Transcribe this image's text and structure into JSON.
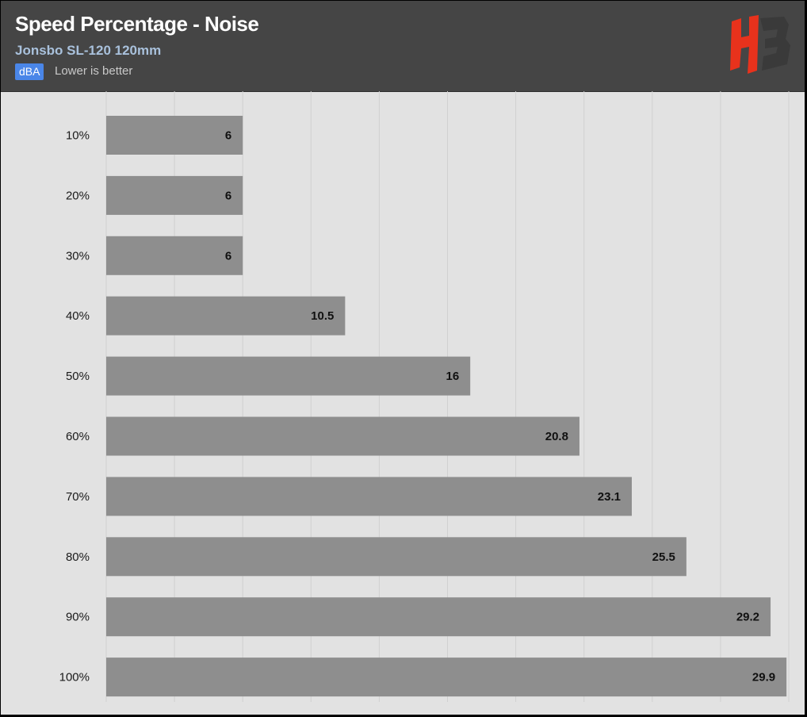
{
  "header": {
    "title": "Speed Percentage - Noise",
    "subtitle": "Jonsbo SL-120 120mm",
    "unit_badge": "dBA",
    "note": "Lower is better",
    "logo_icon": "hb-logo-icon"
  },
  "colors": {
    "header_bg": "#454545",
    "plot_bg": "#e2e2e2",
    "bar": "#8e8e8e",
    "gridline": "#d0d0d0",
    "badge": "#4a86e8",
    "subtitle": "#a9c1dc",
    "logo_red": "#e8321c",
    "logo_dark": "#3a3a3a"
  },
  "chart_data": {
    "type": "bar",
    "orientation": "horizontal",
    "title": "Speed Percentage - Noise",
    "subtitle": "Jonsbo SL-120 120mm",
    "unit": "dBA",
    "note": "Lower is better",
    "categories": [
      "10%",
      "20%",
      "30%",
      "40%",
      "50%",
      "60%",
      "70%",
      "80%",
      "90%",
      "100%"
    ],
    "values": [
      6,
      6,
      6,
      10.5,
      16,
      20.8,
      23.1,
      25.5,
      29.2,
      29.9
    ],
    "xlim": [
      0,
      30
    ],
    "grid": true,
    "legend": "none"
  }
}
